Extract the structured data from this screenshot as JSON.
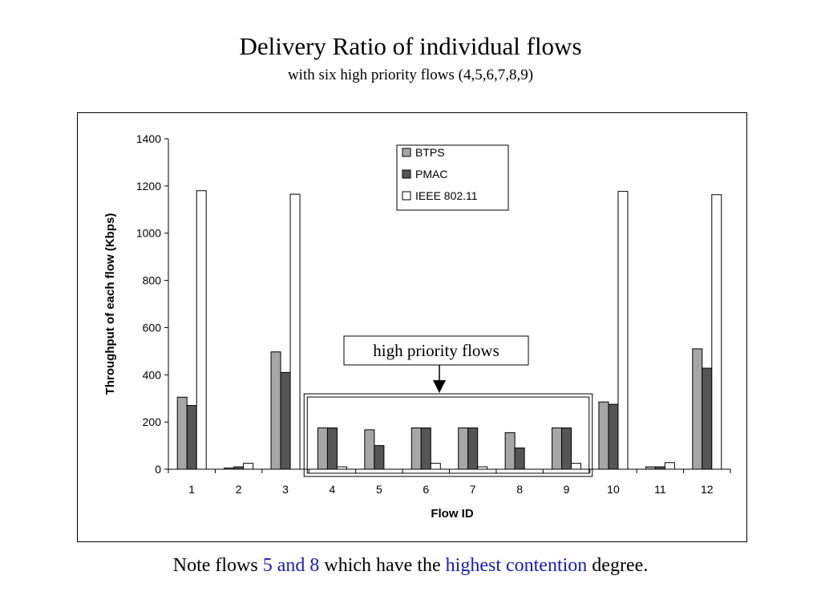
{
  "slide": {
    "title": "Delivery Ratio of individual flows",
    "subtitle": "with six high priority flows (4,5,6,7,8,9)",
    "note": {
      "prefix": "Note flows ",
      "highlight1": "5 and 8",
      "middle": " which have the ",
      "highlight2": "highest contention",
      "suffix": " degree."
    }
  },
  "colors": {
    "btps": "#a6a6a6",
    "pmac": "#555555",
    "ieee": "#ffffff",
    "highlight_text": "#1a1ab8"
  },
  "chart_data": {
    "type": "bar",
    "categories": [
      "1",
      "2",
      "3",
      "4",
      "5",
      "6",
      "7",
      "8",
      "9",
      "10",
      "11",
      "12"
    ],
    "series": [
      {
        "name": "BTPS",
        "values": [
          305,
          5,
          497,
          175,
          167,
          175,
          175,
          155,
          175,
          285,
          10,
          510
        ]
      },
      {
        "name": "PMAC",
        "values": [
          270,
          10,
          410,
          175,
          100,
          175,
          175,
          90,
          175,
          275,
          10,
          428
        ]
      },
      {
        "name": "IEEE 802.11",
        "values": [
          1180,
          25,
          1165,
          10,
          0,
          25,
          10,
          0,
          25,
          1177,
          28,
          1163
        ]
      }
    ],
    "xlabel": "Flow ID",
    "ylabel": "Throughput of each flow (Kbps)",
    "ylim": [
      0,
      1400
    ],
    "yticks": [
      0,
      200,
      400,
      600,
      800,
      1000,
      1200,
      1400
    ],
    "grid": false,
    "legend_position": "top-center",
    "annotation": {
      "text": "high priority flows",
      "highlighted_categories": [
        "4",
        "5",
        "6",
        "7",
        "8",
        "9"
      ]
    }
  }
}
